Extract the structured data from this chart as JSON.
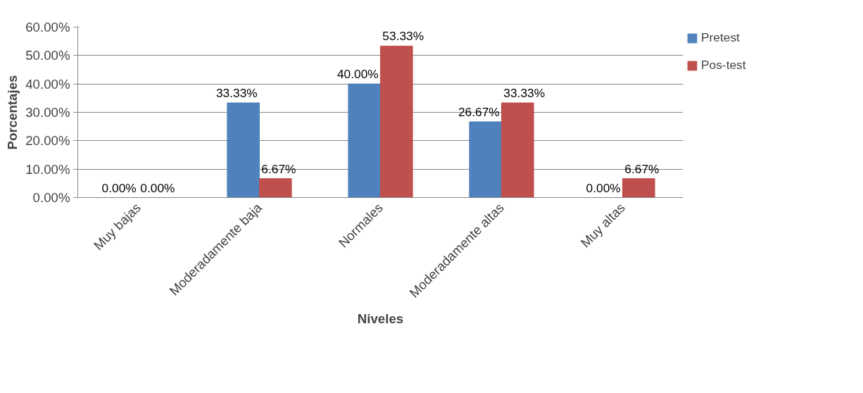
{
  "chart_data": {
    "type": "bar",
    "xlabel": "Niveles",
    "ylabel": "Porcentajes",
    "categories": [
      "Muy bajas",
      "Moderadamente baja",
      "Normales",
      "Moderadamente altas",
      "Muy altas"
    ],
    "series": [
      {
        "name": "Pretest",
        "color": "#4f81bd",
        "values": [
          0,
          33.33,
          40,
          26.67,
          0
        ],
        "value_labels": [
          "0.00%",
          "33.33%",
          "40.00%",
          "26.67%",
          "0.00%"
        ]
      },
      {
        "name": "Pos-test",
        "color": "#c0504d",
        "values": [
          0,
          6.67,
          53.33,
          33.33,
          6.67
        ],
        "value_labels": [
          "0.00%",
          "6.67%",
          "53.33%",
          "33.33%",
          "6.67%"
        ]
      }
    ],
    "ylim": [
      0,
      60
    ],
    "yticks": [
      {
        "value": 0,
        "label": "0.00%"
      },
      {
        "value": 10,
        "label": "10.00%"
      },
      {
        "value": 20,
        "label": "20.00%"
      },
      {
        "value": 30,
        "label": "30.00%"
      },
      {
        "value": 40,
        "label": "40.00%"
      },
      {
        "value": 50,
        "label": "50.00%"
      },
      {
        "value": 60,
        "label": "60.00%"
      }
    ],
    "grid": "y",
    "legend": "right"
  }
}
